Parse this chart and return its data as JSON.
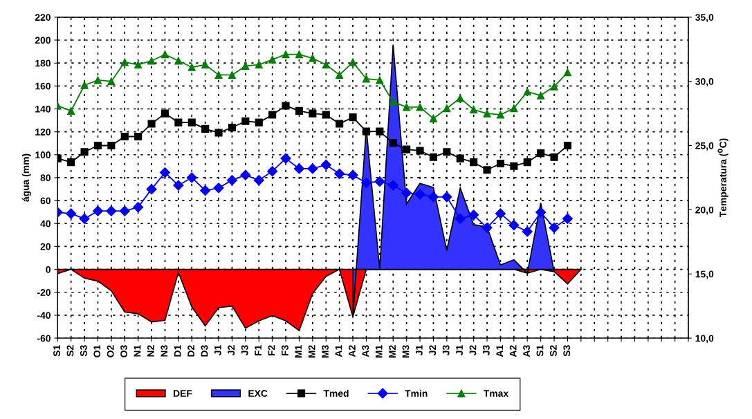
{
  "chart_data": {
    "type": "line",
    "categories": [
      "S1",
      "S2",
      "S3",
      "O1",
      "O2",
      "O3",
      "N1",
      "N2",
      "N3",
      "D1",
      "D2",
      "D3",
      "J1",
      "J2",
      "J3",
      "F1",
      "F2",
      "F3",
      "M1",
      "M2",
      "M3",
      "A1",
      "A2",
      "A3",
      "M1",
      "M2",
      "M3",
      "J1",
      "J2",
      "J3",
      "J1",
      "J2",
      "J3",
      "A1",
      "A2",
      "A3",
      "S1",
      "S2",
      "S3",
      null,
      null,
      null,
      null,
      null,
      null,
      null,
      null,
      null
    ],
    "series": [
      {
        "name": "DEF",
        "type": "area",
        "color": "#ff0000",
        "values": [
          -3.8,
          0,
          -7.7,
          -10.3,
          -18.7,
          -37.2,
          -38.8,
          -45.9,
          -44.5,
          -2.6,
          -32.8,
          -49.3,
          -33.4,
          -32,
          -51.3,
          -44.9,
          -40.3,
          -44.9,
          -53.5,
          -21.1,
          -6.2,
          0,
          -41.4,
          0,
          0,
          0,
          0,
          0,
          0,
          0,
          0,
          0,
          0,
          0,
          0,
          -3.4,
          0,
          -2,
          -12.7,
          0,
          null,
          null,
          null,
          null,
          null,
          null,
          null,
          null
        ]
      },
      {
        "name": "EXC",
        "type": "area",
        "color": "#3333ff",
        "values": [
          null,
          null,
          null,
          null,
          null,
          null,
          null,
          null,
          null,
          null,
          null,
          null,
          null,
          null,
          null,
          null,
          null,
          null,
          null,
          null,
          null,
          null,
          -41.4,
          123,
          0,
          196,
          57,
          75,
          71.5,
          16.5,
          71,
          39,
          37,
          3.8,
          8.4,
          -3.4,
          58,
          -2,
          null,
          null,
          null,
          null,
          null,
          null,
          null,
          null,
          null,
          null
        ]
      },
      {
        "name": "Tmed",
        "axis": "y2",
        "color": "#000000",
        "marker": "square",
        "values": [
          24.0,
          23.7,
          24.5,
          25.0,
          25.0,
          25.7,
          25.7,
          26.7,
          27.5,
          26.8,
          26.8,
          26.3,
          26.0,
          26.4,
          26.9,
          26.8,
          27.4,
          28.1,
          27.7,
          27.5,
          27.4,
          26.7,
          27.2,
          26.1,
          26.1,
          25.2,
          24.7,
          24.6,
          24.1,
          24.5,
          24.0,
          23.7,
          23.1,
          23.6,
          23.4,
          23.7,
          24.4,
          24.1,
          25.0,
          null,
          null,
          null,
          null,
          null,
          null,
          null,
          null,
          null
        ]
      },
      {
        "name": "Tmin",
        "axis": "y2",
        "color": "#0000ff",
        "marker": "diamond",
        "values": [
          19.8,
          19.7,
          19.3,
          19.9,
          19.9,
          19.9,
          20.2,
          21.6,
          22.9,
          21.9,
          22.5,
          21.5,
          21.7,
          22.3,
          22.7,
          22.3,
          23.0,
          24.0,
          23.2,
          23.2,
          23.5,
          22.8,
          22.7,
          22.1,
          22.2,
          21.9,
          21.3,
          21.2,
          21.0,
          21.0,
          19.3,
          19.6,
          18.6,
          19.7,
          18.8,
          18.3,
          19.8,
          18.6,
          19.3,
          null,
          null,
          null,
          null,
          null,
          null,
          null,
          null,
          null
        ]
      },
      {
        "name": "Tmax",
        "axis": "y2",
        "color": "#008000",
        "marker": "triangle",
        "values": [
          28.1,
          27.7,
          29.7,
          30.1,
          30.0,
          31.5,
          31.3,
          31.6,
          32.1,
          31.6,
          31.1,
          31.3,
          30.5,
          30.5,
          31.2,
          31.3,
          31.7,
          32.1,
          32.1,
          31.8,
          31.3,
          30.5,
          31.5,
          30.2,
          30.1,
          28.4,
          28.0,
          28.0,
          27.1,
          27.9,
          28.7,
          27.8,
          27.5,
          27.4,
          27.9,
          29.2,
          28.9,
          29.6,
          30.7,
          null,
          null,
          null,
          null,
          null,
          null,
          null,
          null,
          null
        ]
      }
    ],
    "ylabel": "água (mm)",
    "y2label": "Temperatura ($^{0}$C)",
    "ylim": [
      -60,
      220
    ],
    "yticks": [
      -60,
      -40,
      -20,
      0,
      20,
      40,
      60,
      80,
      100,
      120,
      140,
      160,
      180,
      200,
      220
    ],
    "y2lim": [
      10,
      35
    ],
    "y2ticks": [
      {
        "value": 10,
        "label": "10,0"
      },
      {
        "value": 15,
        "label": "15,0"
      },
      {
        "value": 20,
        "label": "20,0"
      },
      {
        "value": 25,
        "label": "25,0"
      },
      {
        "value": 30,
        "label": "30,0"
      },
      {
        "value": 35,
        "label": "35,0"
      }
    ],
    "grid": true,
    "legend": "bottom",
    "line_style": "solid"
  }
}
